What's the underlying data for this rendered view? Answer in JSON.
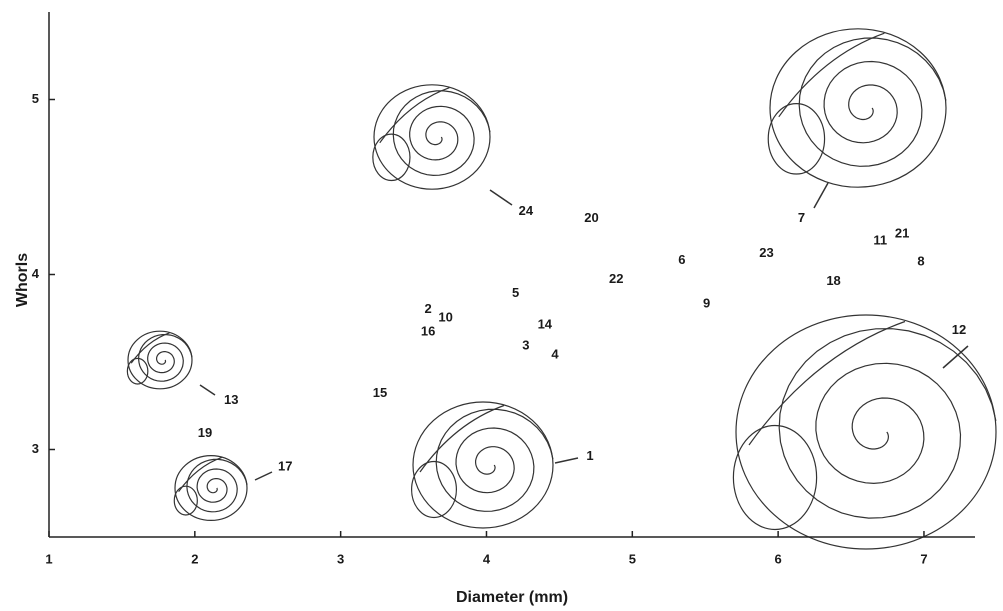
{
  "chart_data": {
    "type": "scatter",
    "x_label": "Diameter (mm)",
    "y_label": "Whorls",
    "xlim": [
      1,
      7.35
    ],
    "ylim": [
      2.5,
      5.5
    ],
    "xticks": [
      1,
      2,
      3,
      4,
      5,
      6,
      7
    ],
    "yticks": [
      3,
      4,
      5
    ],
    "labels": [
      "24",
      "20",
      "6",
      "22",
      "23",
      "11",
      "21",
      "8",
      "18",
      "9",
      "5",
      "2",
      "10",
      "16",
      "14",
      "3",
      "4",
      "15",
      "13",
      "7",
      "12",
      "17",
      "1",
      "19"
    ],
    "x": [
      4.27,
      4.72,
      5.34,
      4.89,
      5.92,
      6.7,
      6.85,
      6.98,
      6.38,
      5.51,
      4.2,
      3.6,
      3.72,
      3.6,
      4.4,
      4.27,
      4.47,
      3.27,
      2.25,
      6.16,
      7.24,
      2.62,
      4.71,
      2.07
    ],
    "values": [
      4.36,
      4.32,
      4.08,
      3.97,
      4.12,
      4.19,
      4.23,
      4.07,
      3.96,
      3.83,
      3.89,
      3.8,
      3.75,
      3.67,
      3.71,
      3.59,
      3.54,
      3.32,
      3.28,
      4.32,
      3.68,
      2.9,
      2.96,
      3.09
    ],
    "color": "#1a1a1a"
  }
}
